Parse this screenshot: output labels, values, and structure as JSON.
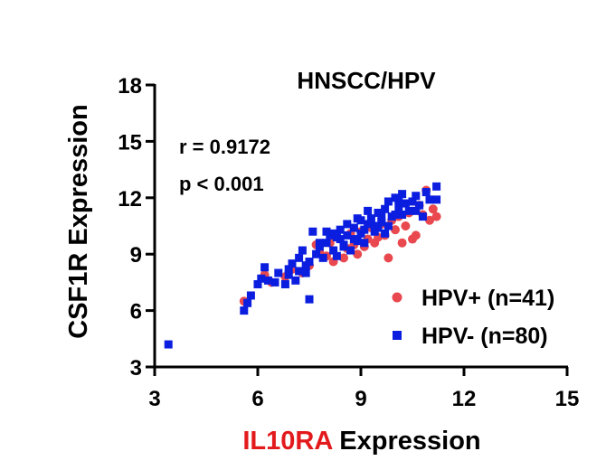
{
  "chart_data": {
    "type": "scatter",
    "title": "HNSCC/HPV",
    "xlabel_parts": [
      {
        "text": "IL10RA",
        "color": "#e31a1c"
      },
      {
        "text": " Expression",
        "color": "#000000"
      }
    ],
    "ylabel": "CSF1R Expression",
    "xlim": [
      3,
      15
    ],
    "ylim": [
      3,
      18
    ],
    "xticks": [
      3,
      6,
      9,
      12,
      15
    ],
    "yticks": [
      3,
      6,
      9,
      12,
      15,
      18
    ],
    "annotations": [
      "r = 0.9172",
      "p < 0.001"
    ],
    "legend_position": "bottom-right",
    "series": [
      {
        "name": "HPV+ (n=41)",
        "marker": "circle",
        "color": "#e8484e",
        "points": [
          [
            5.6,
            6.5
          ],
          [
            6.2,
            7.9
          ],
          [
            6.4,
            7.5
          ],
          [
            6.8,
            7.8
          ],
          [
            7.0,
            8.2
          ],
          [
            7.3,
            8.0
          ],
          [
            7.5,
            8.4
          ],
          [
            7.7,
            9.5
          ],
          [
            7.8,
            9.1
          ],
          [
            8.0,
            8.9
          ],
          [
            8.1,
            9.6
          ],
          [
            8.2,
            8.6
          ],
          [
            8.3,
            9.9
          ],
          [
            8.5,
            8.8
          ],
          [
            8.6,
            9.3
          ],
          [
            8.7,
            10.1
          ],
          [
            8.8,
            9.5
          ],
          [
            8.9,
            9.0
          ],
          [
            9.0,
            10.2
          ],
          [
            9.1,
            9.4
          ],
          [
            9.2,
            9.8
          ],
          [
            9.3,
            10.4
          ],
          [
            9.4,
            9.6
          ],
          [
            9.5,
            9.9
          ],
          [
            9.6,
            10.6
          ],
          [
            9.7,
            10.0
          ],
          [
            9.8,
            8.8
          ],
          [
            9.9,
            10.8
          ],
          [
            10.0,
            10.3
          ],
          [
            10.1,
            11.0
          ],
          [
            10.3,
            10.5
          ],
          [
            10.4,
            11.2
          ],
          [
            10.5,
            9.8
          ],
          [
            10.6,
            10.0
          ],
          [
            10.7,
            11.6
          ],
          [
            10.8,
            11.1
          ],
          [
            10.9,
            12.4
          ],
          [
            11.0,
            10.8
          ],
          [
            11.1,
            11.4
          ],
          [
            11.2,
            11.0
          ],
          [
            10.2,
            9.6
          ]
        ]
      },
      {
        "name": "HPV- (n=80)",
        "marker": "square",
        "color": "#0b1ee0",
        "points": [
          [
            3.4,
            4.2
          ],
          [
            5.6,
            6.0
          ],
          [
            5.7,
            6.4
          ],
          [
            5.8,
            6.8
          ],
          [
            6.0,
            7.4
          ],
          [
            6.1,
            7.7
          ],
          [
            6.2,
            8.3
          ],
          [
            6.3,
            7.6
          ],
          [
            6.5,
            7.5
          ],
          [
            6.8,
            7.4
          ],
          [
            6.9,
            7.9
          ],
          [
            7.0,
            8.5
          ],
          [
            7.1,
            7.6
          ],
          [
            7.2,
            8.1
          ],
          [
            7.3,
            9.2
          ],
          [
            7.4,
            8.0
          ],
          [
            7.5,
            6.6
          ],
          [
            7.5,
            8.6
          ],
          [
            7.6,
            10.2
          ],
          [
            7.7,
            9.0
          ],
          [
            7.8,
            9.4
          ],
          [
            7.9,
            8.8
          ],
          [
            8.0,
            9.6
          ],
          [
            8.1,
            10.0
          ],
          [
            8.2,
            9.2
          ],
          [
            8.3,
            8.9
          ],
          [
            8.4,
            9.8
          ],
          [
            8.4,
            10.3
          ],
          [
            8.5,
            9.5
          ],
          [
            8.6,
            10.0
          ],
          [
            8.7,
            9.2
          ],
          [
            8.8,
            10.4
          ],
          [
            8.9,
            9.7
          ],
          [
            9.0,
            10.1
          ],
          [
            9.1,
            9.6
          ],
          [
            9.2,
            10.6
          ],
          [
            9.3,
            10.9
          ],
          [
            9.4,
            10.2
          ],
          [
            9.5,
            11.2
          ],
          [
            9.6,
            10.7
          ],
          [
            9.7,
            11.4
          ],
          [
            9.8,
            10.5
          ],
          [
            9.9,
            11.0
          ],
          [
            10.0,
            12.0
          ],
          [
            10.1,
            11.5
          ],
          [
            10.2,
            11.1
          ],
          [
            10.3,
            11.7
          ],
          [
            10.4,
            11.3
          ],
          [
            10.5,
            11.8
          ],
          [
            10.6,
            12.1
          ],
          [
            10.7,
            11.6
          ],
          [
            10.8,
            11.0
          ],
          [
            10.9,
            12.3
          ],
          [
            11.0,
            11.9
          ],
          [
            11.2,
            12.6
          ],
          [
            11.2,
            11.9
          ],
          [
            8.0,
            10.2
          ],
          [
            8.2,
            10.1
          ],
          [
            8.6,
            10.6
          ],
          [
            8.8,
            9.8
          ],
          [
            9.0,
            10.8
          ],
          [
            9.2,
            11.3
          ],
          [
            9.4,
            10.5
          ],
          [
            9.6,
            11.0
          ],
          [
            9.8,
            11.8
          ],
          [
            7.8,
            9.6
          ],
          [
            7.4,
            8.4
          ],
          [
            6.6,
            8.0
          ],
          [
            6.9,
            8.2
          ],
          [
            8.5,
            9.4
          ],
          [
            9.1,
            10.3
          ],
          [
            9.7,
            10.1
          ],
          [
            10.1,
            11.9
          ],
          [
            10.6,
            11.3
          ],
          [
            10.2,
            12.2
          ],
          [
            7.2,
            8.8
          ],
          [
            8.3,
            9.9
          ],
          [
            9.5,
            10.4
          ],
          [
            10.0,
            11.1
          ],
          [
            8.9,
            10.9
          ]
        ]
      }
    ]
  }
}
